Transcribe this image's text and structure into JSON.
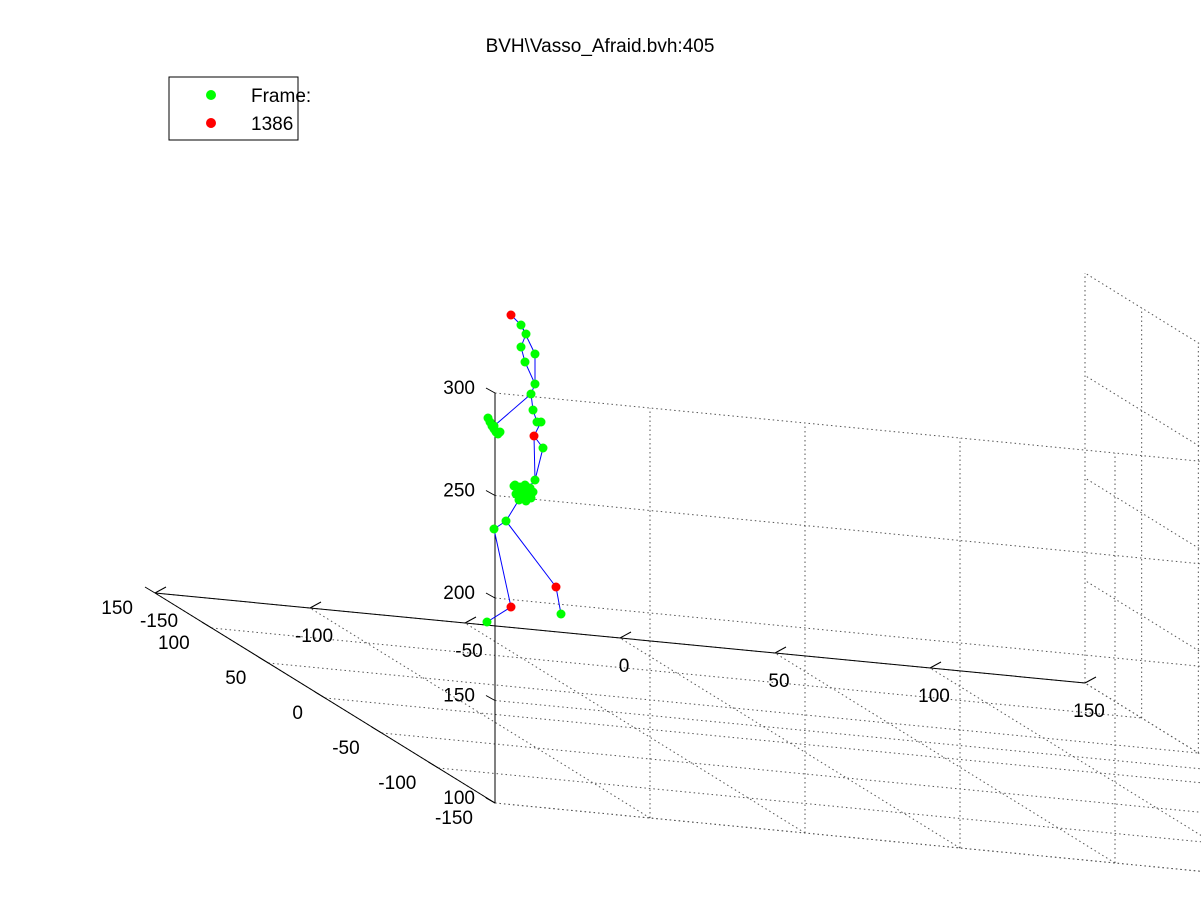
{
  "chart_data": {
    "type": "scatter",
    "title": "BVH\\Vasso_Afraid.bvh:405",
    "view": "3d",
    "grid": true,
    "axes": {
      "x": {
        "range": [
          -150,
          150
        ],
        "ticks": [
          "-150",
          "-100",
          "-50",
          "0",
          "50",
          "100",
          "150"
        ]
      },
      "y": {
        "range": [
          -150,
          150
        ],
        "ticks": [
          "-150",
          "-100",
          "-50",
          "0",
          "50",
          "100",
          "150"
        ]
      },
      "z": {
        "range": [
          100,
          300
        ],
        "ticks": [
          "100",
          "150",
          "200",
          "250",
          "300"
        ]
      }
    },
    "legend": {
      "placement": "top-left",
      "entries": [
        {
          "label": "Frame:",
          "color": "#00ff00"
        },
        {
          "label": "1386",
          "color": "#ff0000"
        }
      ]
    },
    "colors": {
      "joint": "#00ff00",
      "marker": "#ff0000",
      "bone": "#0000ff"
    }
  }
}
